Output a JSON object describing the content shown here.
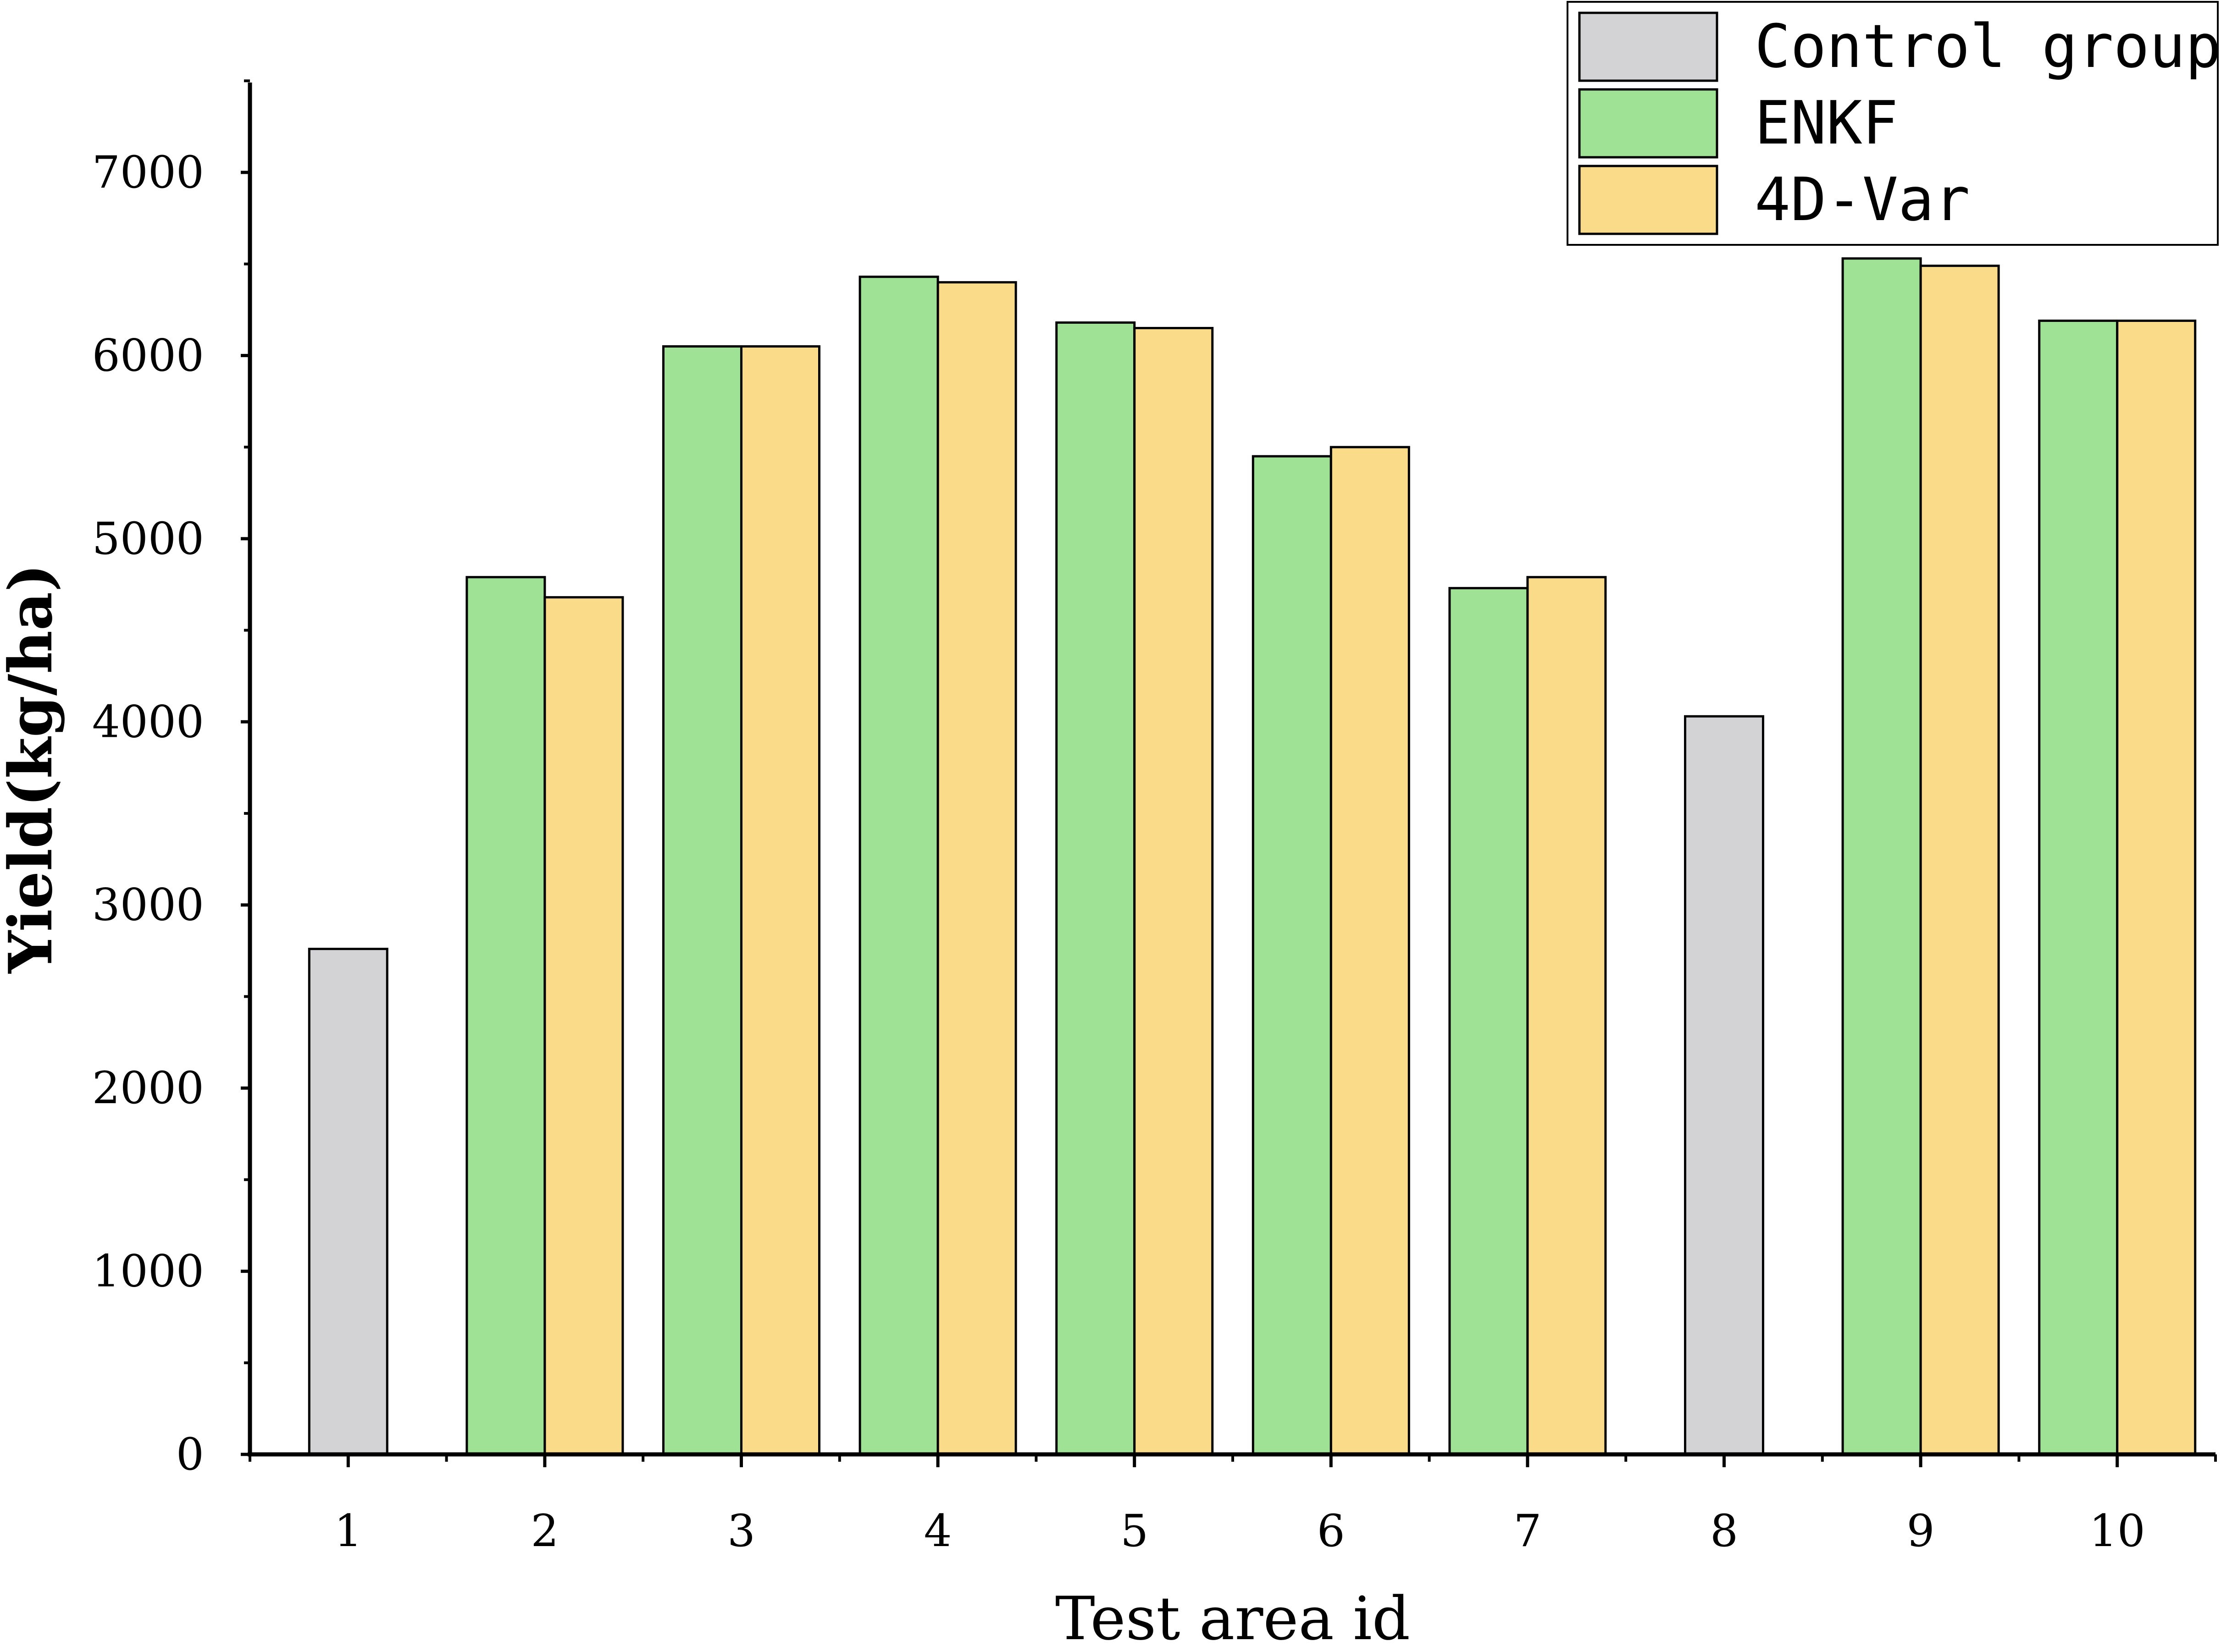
{
  "chart_data": {
    "type": "bar",
    "xlabel": "Test area id",
    "ylabel": "Yield(kg/ha)",
    "ylim": [
      0,
      7500
    ],
    "yticks": [
      0,
      1000,
      2000,
      3000,
      4000,
      5000,
      6000,
      7000
    ],
    "categories": [
      "1",
      "2",
      "3",
      "4",
      "5",
      "6",
      "7",
      "8",
      "9",
      "10"
    ],
    "series": [
      {
        "name": "Control group",
        "color": "#d3d3d5",
        "values": [
          2760,
          null,
          null,
          null,
          null,
          null,
          null,
          4030,
          null,
          null
        ]
      },
      {
        "name": "ENKF",
        "color": "#9fe195",
        "values": [
          null,
          4790,
          6050,
          6430,
          6180,
          5450,
          4730,
          null,
          6530,
          6190
        ]
      },
      {
        "name": "4D-Var",
        "color": "#fadb8a",
        "values": [
          null,
          4680,
          6050,
          6400,
          6150,
          5500,
          4790,
          null,
          6490,
          6190
        ]
      }
    ],
    "grid": false,
    "legend_position": "top-right"
  }
}
